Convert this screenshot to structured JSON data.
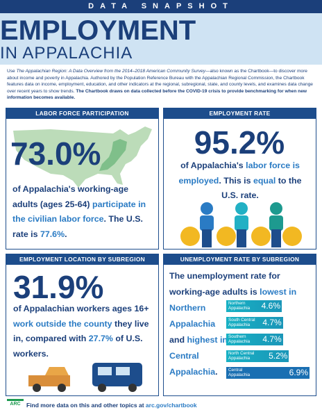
{
  "header": {
    "kicker": "DATA SNAPSHOT",
    "title": "EMPLOYMENT",
    "subtitle": "IN APPALACHIA"
  },
  "intro": [
    "Use ",
    "The Appalachian Region: A Data Overview from the 2014–2018 American Community Survey",
    "—also known as the Chartbook—to discover more about income and poverty in Appalachia. Authored by the Population Reference Bureau with the Appalachian Regional Commission, the Chartbook features data on income, employment, education, and other indicators at the regional, subregional, state, and county levels, and examines data change over recent years to show trends. ",
    "The Chartbook draws on data collected before the COVID-19 crisis to provide benchmarking for when new information becomes available."
  ],
  "panels": [
    {
      "title": "LABOR FORCE PARTICIPATION",
      "stat": "73.0%",
      "text": [
        "of Appalachia's working-age adults (ages 25-64) ",
        "participate in the civilian labor force",
        ". The U.S. rate is ",
        "77.6%",
        "."
      ]
    },
    {
      "title": "EMPLOYMENT RATE",
      "stat": "95.2%",
      "text": [
        "of Appalachia's ",
        "labor force is employed",
        ". This is ",
        "equal",
        " to the U.S. rate."
      ]
    },
    {
      "title": "EMPLOYMENT LOCATION BY SUBREGION",
      "stat": "31.9%",
      "text": [
        "of Appalachian workers ages 16+ ",
        "work outside the county",
        " they live in, compared with ",
        "27.7%",
        " of U.S. workers."
      ]
    },
    {
      "title": "UNEMPLOYMENT RATE BY SUBREGION",
      "text": [
        "The unemployment rate for working-age adults is ",
        "lowest in Northern Appalachia",
        " and ",
        "highest in Central Appalachia",
        "."
      ],
      "bars": {
        "names": [
          "Northern Appalachia",
          "South Central Appalachia",
          "Southern Appalachia",
          "North Central Appalachia",
          "Central Appalachia"
        ],
        "values": [
          4.6,
          4.7,
          4.7,
          5.2,
          6.9
        ],
        "value_labels": [
          "4.6%",
          "4.7%",
          "4.7%",
          "5.2%",
          "6.9%"
        ]
      }
    }
  ],
  "footer": {
    "logo": "ARC",
    "text": [
      "Find more data on this and other topics at ",
      "arc.gov/chartbook"
    ]
  }
}
